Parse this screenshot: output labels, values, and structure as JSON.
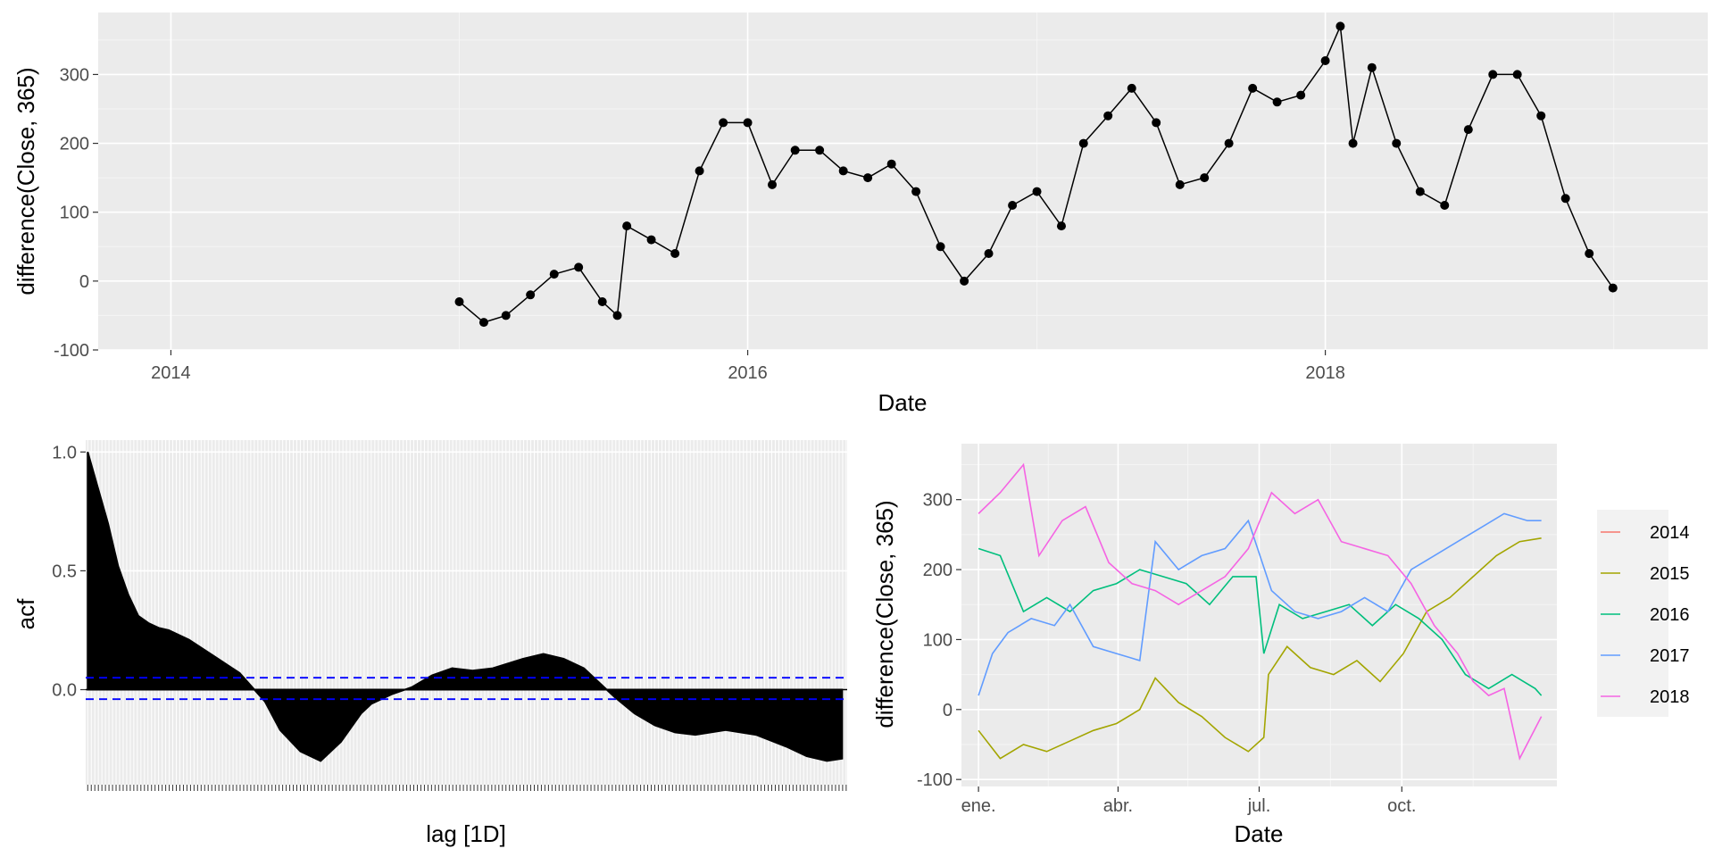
{
  "chart_data": [
    {
      "type": "scatter",
      "xlabel": "Date",
      "ylabel": "difference(Close, 365)",
      "xlim": [
        "2013-10-01",
        "2019-04-30"
      ],
      "ylim": [
        -100,
        390
      ],
      "x_ticks": [
        "2014",
        "2016",
        "2018"
      ],
      "y_ticks": [
        "-100",
        "0",
        "100",
        "200",
        "300"
      ],
      "grid": true,
      "series": [
        {
          "x": [
            "2015-01-01",
            "2015-02-01",
            "2015-03-01",
            "2015-04-01",
            "2015-05-01",
            "2015-06-01",
            "2015-07-01",
            "2015-07-20",
            "2015-08-01",
            "2015-09-01",
            "2015-10-01",
            "2015-11-01",
            "2015-12-01",
            "2016-01-01",
            "2016-02-01",
            "2016-03-01",
            "2016-04-01",
            "2016-05-01",
            "2016-06-01",
            "2016-07-01",
            "2016-08-01",
            "2016-09-01",
            "2016-10-01",
            "2016-11-01",
            "2016-12-01",
            "2017-01-01",
            "2017-02-01",
            "2017-03-01",
            "2017-04-01",
            "2017-05-01",
            "2017-06-01",
            "2017-07-01",
            "2017-08-01",
            "2017-09-01",
            "2017-10-01",
            "2017-11-01",
            "2017-12-01",
            "2018-01-01",
            "2018-01-20",
            "2018-02-05",
            "2018-03-01",
            "2018-04-01",
            "2018-05-01",
            "2018-06-01",
            "2018-07-01",
            "2018-08-01",
            "2018-09-01",
            "2018-10-01",
            "2018-11-01",
            "2018-12-01",
            "2018-12-31"
          ],
          "y": [
            -30,
            -60,
            -50,
            -20,
            10,
            20,
            -30,
            -50,
            80,
            60,
            40,
            160,
            230,
            230,
            140,
            190,
            190,
            160,
            150,
            170,
            130,
            50,
            0,
            40,
            110,
            130,
            80,
            200,
            240,
            280,
            230,
            140,
            150,
            200,
            280,
            260,
            270,
            320,
            370,
            200,
            310,
            200,
            130,
            110,
            220,
            300,
            300,
            240,
            120,
            40,
            -10
          ]
        }
      ]
    },
    {
      "type": "bar",
      "xlabel": "lag [1D]",
      "ylabel": "acf",
      "xlim": [
        -4,
        1500
      ],
      "ylim": [
        -0.4,
        1.05
      ],
      "y_ticks": [
        "0.0",
        "0.5",
        "1.0"
      ],
      "ci": [
        0.05,
        -0.04
      ],
      "series": [
        {
          "x": [
            0,
            20,
            40,
            60,
            80,
            100,
            120,
            140,
            160,
            200,
            250,
            300,
            350,
            380,
            420,
            460,
            500,
            540,
            560,
            600,
            640,
            680,
            720,
            760,
            800,
            860,
            900,
            940,
            980,
            1000,
            1040,
            1080,
            1120,
            1160,
            1200,
            1260,
            1320,
            1380,
            1420,
            1460,
            1490
          ],
          "values": [
            1.0,
            0.85,
            0.7,
            0.52,
            0.4,
            0.31,
            0.28,
            0.26,
            0.25,
            0.21,
            0.14,
            0.07,
            -0.05,
            -0.17,
            -0.26,
            -0.3,
            -0.22,
            -0.1,
            -0.06,
            -0.02,
            0.01,
            0.06,
            0.09,
            0.08,
            0.09,
            0.13,
            0.15,
            0.13,
            0.09,
            0.05,
            -0.03,
            -0.1,
            -0.15,
            -0.18,
            -0.19,
            -0.17,
            -0.19,
            -0.24,
            -0.28,
            -0.3,
            -0.29
          ]
        }
      ]
    },
    {
      "type": "line",
      "xlabel": "Date",
      "ylabel": "difference(Close, 365)",
      "xlim": [
        -10,
        374
      ],
      "ylim": [
        -110,
        380
      ],
      "x_ticks": [
        "ene.",
        "abr.",
        "jul.",
        "oct."
      ],
      "y_ticks": [
        "-100",
        "0",
        "100",
        "200",
        "300"
      ],
      "legend": {
        "position": "right",
        "entries": [
          "2014",
          "2015",
          "2016",
          "2017",
          "2018"
        ]
      },
      "series": [
        {
          "name": "2015",
          "color": "#A3A500",
          "x": [
            1,
            15,
            30,
            45,
            60,
            75,
            90,
            105,
            115,
            130,
            145,
            160,
            175,
            185,
            188,
            200,
            215,
            230,
            245,
            260,
            275,
            290,
            305,
            320,
            335,
            350,
            364
          ],
          "y": [
            -30,
            -70,
            -50,
            -60,
            -45,
            -30,
            -20,
            0,
            45,
            10,
            -10,
            -40,
            -60,
            -40,
            50,
            90,
            60,
            50,
            70,
            40,
            80,
            140,
            160,
            190,
            220,
            240,
            245
          ]
        },
        {
          "name": "2016",
          "color": "#00BF7D",
          "x": [
            1,
            15,
            30,
            45,
            60,
            75,
            90,
            105,
            120,
            135,
            150,
            165,
            180,
            185,
            195,
            210,
            225,
            240,
            255,
            270,
            285,
            300,
            315,
            330,
            345,
            360,
            364
          ],
          "y": [
            230,
            220,
            140,
            160,
            140,
            170,
            180,
            200,
            190,
            180,
            150,
            190,
            190,
            80,
            150,
            130,
            140,
            150,
            120,
            150,
            130,
            100,
            50,
            30,
            50,
            30,
            20
          ]
        },
        {
          "name": "2017",
          "color": "#619CFF",
          "x": [
            1,
            10,
            20,
            35,
            50,
            60,
            75,
            90,
            105,
            115,
            130,
            145,
            160,
            175,
            190,
            205,
            220,
            235,
            250,
            265,
            280,
            295,
            310,
            325,
            340,
            355,
            364
          ],
          "y": [
            20,
            80,
            110,
            130,
            120,
            150,
            90,
            80,
            70,
            240,
            200,
            220,
            230,
            270,
            170,
            140,
            130,
            140,
            160,
            140,
            200,
            220,
            240,
            260,
            280,
            270,
            270
          ]
        },
        {
          "name": "2018",
          "color": "#F564E3",
          "x": [
            1,
            15,
            30,
            40,
            55,
            70,
            85,
            100,
            115,
            130,
            145,
            160,
            175,
            190,
            205,
            220,
            235,
            250,
            265,
            280,
            295,
            310,
            320,
            330,
            340,
            350,
            364
          ],
          "y": [
            280,
            310,
            350,
            220,
            270,
            290,
            210,
            180,
            170,
            150,
            170,
            190,
            230,
            310,
            280,
            300,
            240,
            230,
            220,
            180,
            120,
            80,
            40,
            20,
            30,
            -70,
            -10
          ]
        }
      ]
    }
  ]
}
